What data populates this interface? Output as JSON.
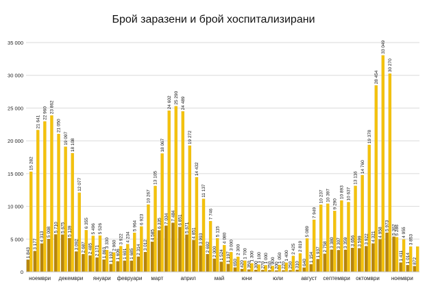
{
  "colors": {
    "infected": "#F4C20D",
    "infected_edge": "#D9A800",
    "hospitalized": "#B8860B",
    "hospitalized_edge": "#8C6508",
    "grid": "#D9D9D9",
    "axis_text": "#222222",
    "label_text": "#111111"
  },
  "chart_data": {
    "type": "bar",
    "title": "Брой заразени и брой хоспитализирани",
    "xlabel": "",
    "ylabel": "",
    "ylim": [
      0,
      35000
    ],
    "yticks": [
      0,
      5000,
      10000,
      15000,
      20000,
      25000,
      30000,
      35000
    ],
    "ytick_labels": [
      "0",
      "5 000",
      "10 000",
      "15 000",
      "20 000",
      "25 000",
      "30 000",
      "35 000"
    ],
    "grid": true,
    "legend": "none",
    "series": [
      {
        "values": [
          1843,
          3177,
          4313,
          5008,
          5710,
          5675,
          5139,
          3092,
          2687,
          2485,
          2171,
          1863,
          1192,
          1606,
          1691,
          1685,
          2314,
          3012,
          4585,
          6335,
          7034,
          7484,
          6851,
          5671,
          4851,
          3993,
          2692,
          2000,
          1524,
          1197,
          650,
          420,
          350,
          300,
          270,
          250,
          200,
          220,
          250,
          310,
          640,
          1154,
          1937,
          2758,
          3380,
          3307,
          3359,
          3656,
          3599,
          3922,
          4321,
          4958,
          5973,
          5362,
          1411,
          1014,
          872
        ]
      },
      {
        "values": [
          15282,
          21641,
          22960,
          23862,
          21050,
          19097,
          18108,
          12077,
          6355,
          5496,
          5526,
          3330,
          2960,
          3922,
          4234,
          5964,
          6923,
          10267,
          13105,
          18067,
          24602,
          25290,
          24489,
          19272,
          14432,
          11137,
          7746,
          5115,
          4080,
          3000,
          2300,
          1700,
          1300,
          1100,
          1000,
          900,
          1050,
          1400,
          2425,
          2819,
          5089,
          7949,
          10237,
          10397,
          9290,
          10893,
          10637,
          13116,
          14760,
          19378,
          28454,
          33049,
          30270,
          5286,
          4955,
          3853,
          3853
        ]
      }
    ],
    "hosp_labels": [
      "1 843",
      "3 177",
      "4 313",
      "5 008",
      "5 710",
      "5 675",
      "5 139",
      "3 092",
      "2 687",
      "2 485",
      "2 171",
      "1 863",
      "1 192",
      "1 606",
      "1 691",
      "1 685",
      "2 314",
      "3 012",
      "4 585",
      "6 335",
      "7 034",
      "7 484",
      "6 851",
      "5 671",
      "4 851",
      "3 993",
      "2 692",
      "2 000",
      "1 524",
      "1 197",
      "650",
      "420",
      "350",
      "300",
      "270",
      "250",
      "200",
      "220",
      "250",
      "310",
      "640",
      "1 154",
      "1 937",
      "2 758",
      "3 380",
      "3 307",
      "3 359",
      "3 656",
      "3 599",
      "3 922",
      "4 321",
      "4 958",
      "5 973",
      "5 362",
      "1 411",
      "1 014",
      "872"
    ],
    "inf_labels": [
      "15 282",
      "21 641",
      "22 960",
      "23 862",
      "21 050",
      "19 097",
      "18 108",
      "12 077",
      "6 355",
      "5 496",
      "5 526",
      "3 330",
      "2 960",
      "3 922",
      "4 234",
      "5 964",
      "6 923",
      "10 267",
      "13 105",
      "18 067",
      "24 602",
      "25 290",
      "24 489",
      "19 272",
      "14 432",
      "11 137",
      "7 746",
      "5 115",
      "4 080",
      "3 000",
      "2 300",
      "1 700",
      "1 300",
      "1 100",
      "1 000",
      "900",
      "1 050",
      "1 400",
      "2 425",
      "2 819",
      "5 089",
      "7 949",
      "10 237",
      "10 397",
      "9 290",
      "10 893",
      "10 637",
      "13 116",
      "14 760",
      "19 378",
      "28 454",
      "33 049",
      "30 270",
      "5 286",
      "4 955",
      "3 853",
      ""
    ],
    "month_labels": [
      {
        "label": "ноември",
        "start": 0,
        "end": 3
      },
      {
        "label": "декември",
        "start": 4,
        "end": 8
      },
      {
        "label": "януари",
        "start": 9,
        "end": 12
      },
      {
        "label": "февруари",
        "start": 13,
        "end": 16
      },
      {
        "label": "март",
        "start": 17,
        "end": 20
      },
      {
        "label": "април",
        "start": 21,
        "end": 25
      },
      {
        "label": "май",
        "start": 26,
        "end": 29
      },
      {
        "label": "юни",
        "start": 30,
        "end": 33
      },
      {
        "label": "юли",
        "start": 34,
        "end": 38
      },
      {
        "label": "август",
        "start": 39,
        "end": 42
      },
      {
        "label": "септември",
        "start": 43,
        "end": 46
      },
      {
        "label": "октомври",
        "start": 47,
        "end": 51
      },
      {
        "label": "ноември",
        "start": 52,
        "end": 56
      }
    ]
  }
}
